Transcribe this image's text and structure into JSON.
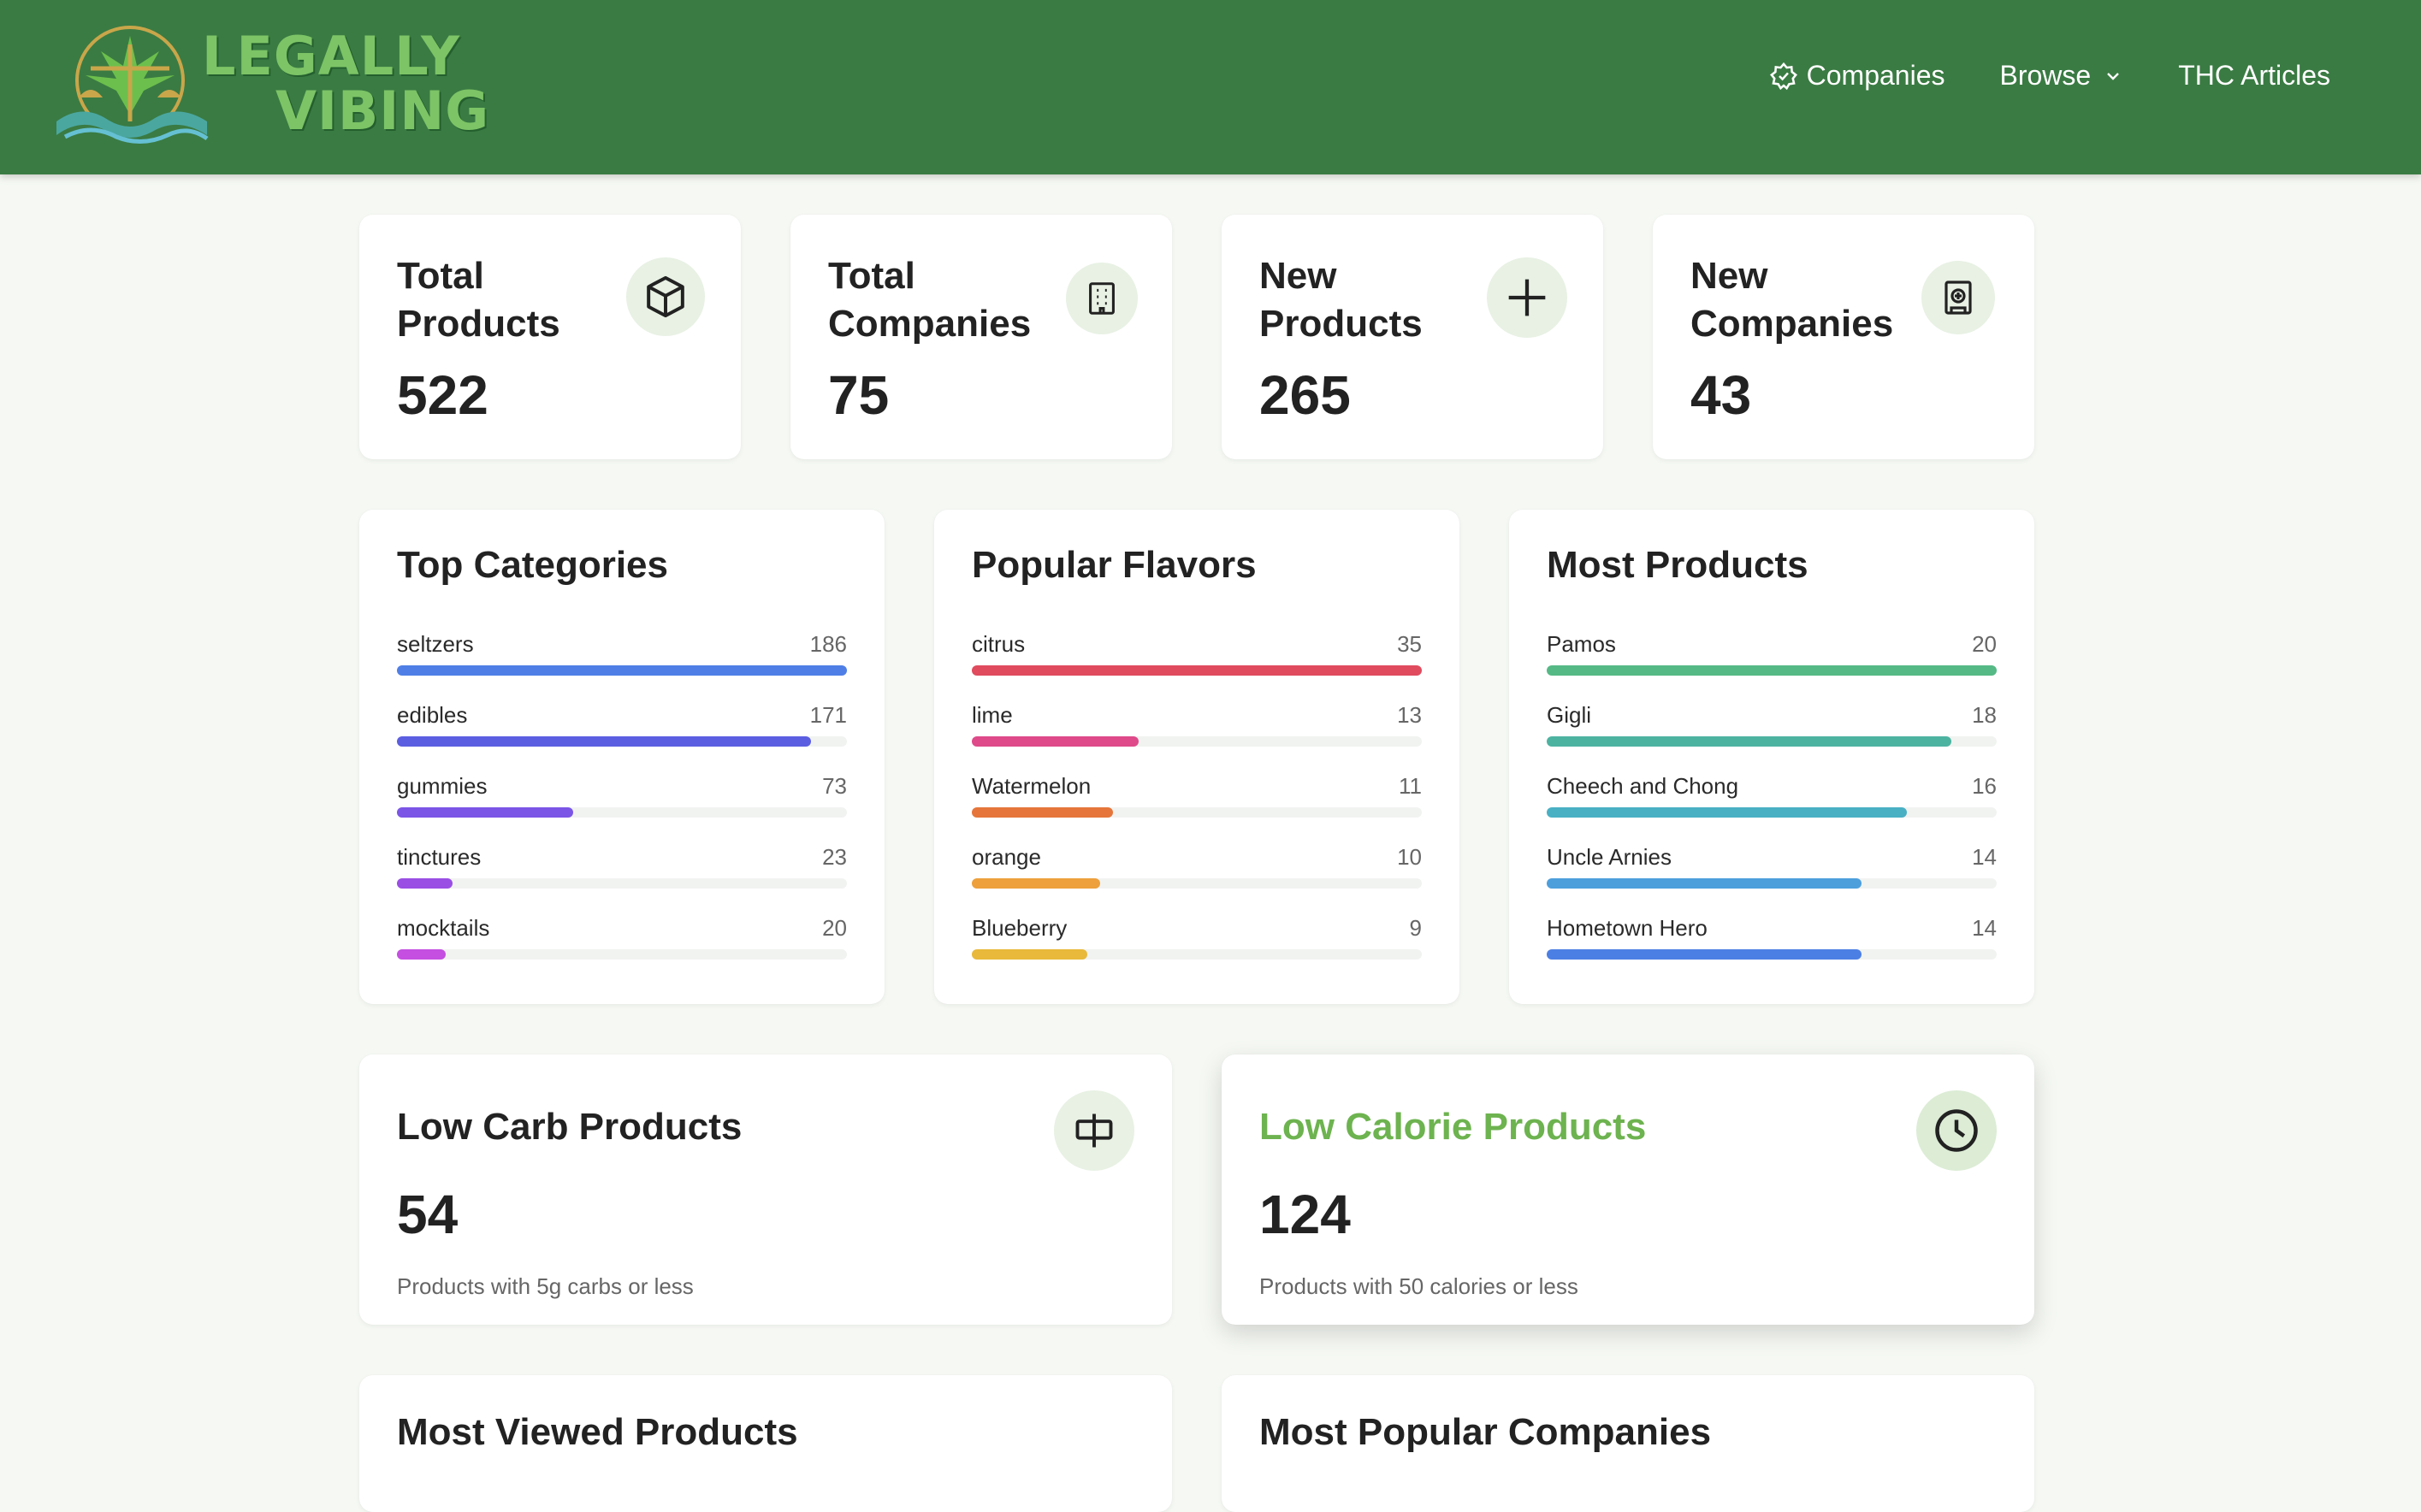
{
  "header": {
    "logo_line1": "LEGALLY",
    "logo_line2": "VIBING",
    "nav": [
      {
        "label": "Companies",
        "icon": "badge-icon"
      },
      {
        "label": "Browse",
        "icon": "chevron-down-icon"
      },
      {
        "label": "THC Articles"
      }
    ]
  },
  "stats": [
    {
      "label": "Total Products",
      "value": "522",
      "icon": "box-icon"
    },
    {
      "label": "Total Companies",
      "value": "75",
      "icon": "building-icon"
    },
    {
      "label": "New Products",
      "value": "265",
      "icon": "plus-icon"
    },
    {
      "label": "New Companies",
      "value": "43",
      "icon": "building-plus-icon"
    }
  ],
  "top_categories": {
    "title": "Top Categories",
    "max": 186,
    "items": [
      {
        "name": "seltzers",
        "count": 186,
        "color": "#4f7fe6"
      },
      {
        "name": "edibles",
        "count": 171,
        "color": "#5b5ee0"
      },
      {
        "name": "gummies",
        "count": 73,
        "color": "#7b55e6"
      },
      {
        "name": "tinctures",
        "count": 23,
        "color": "#9a4ee4"
      },
      {
        "name": "mocktails",
        "count": 20,
        "color": "#c44fe0"
      }
    ]
  },
  "popular_flavors": {
    "title": "Popular Flavors",
    "max": 35,
    "items": [
      {
        "name": "citrus",
        "count": 35,
        "color": "#e04b5e"
      },
      {
        "name": "lime",
        "count": 13,
        "color": "#de4a8a"
      },
      {
        "name": "Watermelon",
        "count": 11,
        "color": "#e5753a"
      },
      {
        "name": "orange",
        "count": 10,
        "color": "#eda03c"
      },
      {
        "name": "Blueberry",
        "count": 9,
        "color": "#e8b93a"
      }
    ]
  },
  "most_products": {
    "title": "Most Products",
    "max": 20,
    "items": [
      {
        "name": "Pamos",
        "count": 20,
        "color": "#55b985"
      },
      {
        "name": "Gigli",
        "count": 18,
        "color": "#4db3a1"
      },
      {
        "name": "Cheech and Chong",
        "count": 16,
        "color": "#49b0c4"
      },
      {
        "name": "Uncle Arnies",
        "count": 14,
        "color": "#4d9fdc"
      },
      {
        "name": "Hometown Hero",
        "count": 14,
        "color": "#4c7fe4"
      }
    ]
  },
  "low_carb": {
    "title": "Low Carb Products",
    "value": "54",
    "desc": "Products with 5g carbs or less",
    "icon": "ruler-icon"
  },
  "low_calorie": {
    "title": "Low Calorie Products",
    "value": "124",
    "desc": "Products with 50 calories or less",
    "icon": "clock-icon",
    "accent": "#6db34f"
  },
  "bottom": {
    "most_viewed": "Most Viewed Products",
    "most_popular": "Most Popular Companies"
  }
}
